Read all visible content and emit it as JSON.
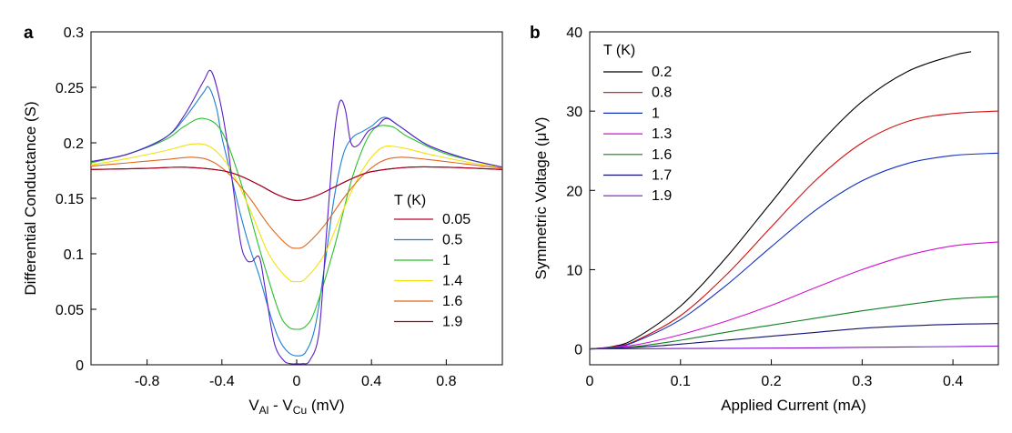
{
  "chart_data": [
    {
      "panel": "a",
      "type": "line",
      "title": "",
      "xlabel": {
        "main": "V",
        "sub1": "Al",
        "mid": " - V",
        "sub2": "Cu",
        "tail": " (mV)"
      },
      "ylabel": "Differential Conductance (S)",
      "xlim": [
        -1.1,
        1.1
      ],
      "ylim": [
        0,
        0.3
      ],
      "xticks": [
        -0.8,
        -0.4,
        0,
        0.4,
        0.8
      ],
      "xtick_labels": [
        "-0.8",
        "-0.4",
        "0",
        "0.4",
        "0.8"
      ],
      "yticks": [
        0,
        0.05,
        0.1,
        0.15,
        0.2,
        0.25,
        0.3
      ],
      "ytick_labels": [
        "0",
        "0.05",
        "0.1",
        "0.15",
        "0.2",
        "0.25",
        "0.3"
      ],
      "legend_title": "T (K)",
      "legend_position": "right",
      "series": [
        {
          "name": "0.05",
          "color": "#c0002a",
          "x": [
            -1.1,
            -0.8,
            -0.6,
            -0.4,
            -0.3,
            -0.2,
            -0.1,
            0,
            0.1,
            0.2,
            0.3,
            0.4,
            0.6,
            0.8,
            1.1
          ],
          "y": [
            0.176,
            0.177,
            0.178,
            0.175,
            0.17,
            0.162,
            0.153,
            0.148,
            0.152,
            0.16,
            0.168,
            0.174,
            0.178,
            0.178,
            0.176
          ]
        },
        {
          "name": "0.5",
          "color": "#1f7fd0",
          "x": [
            -1.1,
            -0.9,
            -0.7,
            -0.6,
            -0.5,
            -0.47,
            -0.43,
            -0.4,
            -0.35,
            -0.3,
            -0.25,
            -0.2,
            -0.15,
            -0.1,
            -0.05,
            0,
            0.05,
            0.1,
            0.15,
            0.2,
            0.25,
            0.3,
            0.35,
            0.4,
            0.47,
            0.55,
            0.7,
            0.9,
            1.1
          ],
          "y": [
            0.183,
            0.19,
            0.205,
            0.222,
            0.245,
            0.25,
            0.232,
            0.205,
            0.17,
            0.135,
            0.105,
            0.08,
            0.05,
            0.025,
            0.012,
            0.008,
            0.012,
            0.035,
            0.09,
            0.15,
            0.19,
            0.205,
            0.21,
            0.215,
            0.223,
            0.215,
            0.198,
            0.186,
            0.178
          ]
        },
        {
          "name": "1",
          "color": "#2bc02b",
          "x": [
            -1.1,
            -0.9,
            -0.7,
            -0.6,
            -0.5,
            -0.4,
            -0.3,
            -0.2,
            -0.1,
            -0.05,
            0,
            0.05,
            0.1,
            0.2,
            0.3,
            0.4,
            0.5,
            0.6,
            0.8,
            1.1
          ],
          "y": [
            0.182,
            0.19,
            0.203,
            0.215,
            0.222,
            0.21,
            0.165,
            0.105,
            0.05,
            0.035,
            0.032,
            0.035,
            0.05,
            0.105,
            0.17,
            0.21,
            0.215,
            0.205,
            0.19,
            0.178
          ]
        },
        {
          "name": "1.4",
          "color": "#f2e20c",
          "x": [
            -1.1,
            -0.9,
            -0.7,
            -0.55,
            -0.45,
            -0.35,
            -0.25,
            -0.15,
            -0.05,
            0,
            0.05,
            0.15,
            0.25,
            0.35,
            0.45,
            0.55,
            0.7,
            0.9,
            1.1
          ],
          "y": [
            0.18,
            0.186,
            0.193,
            0.199,
            0.195,
            0.175,
            0.14,
            0.1,
            0.078,
            0.075,
            0.078,
            0.1,
            0.14,
            0.175,
            0.195,
            0.196,
            0.19,
            0.183,
            0.178
          ]
        },
        {
          "name": "1.6",
          "color": "#e0681c",
          "x": [
            -1.1,
            -0.9,
            -0.7,
            -0.55,
            -0.45,
            -0.35,
            -0.25,
            -0.15,
            -0.05,
            0,
            0.05,
            0.15,
            0.25,
            0.35,
            0.45,
            0.55,
            0.7,
            0.9,
            1.1
          ],
          "y": [
            0.179,
            0.182,
            0.185,
            0.187,
            0.183,
            0.17,
            0.15,
            0.126,
            0.108,
            0.105,
            0.108,
            0.126,
            0.15,
            0.17,
            0.183,
            0.187,
            0.185,
            0.181,
            0.177
          ]
        },
        {
          "name": "1.9",
          "color": "#a0001c",
          "x": [
            -1.1,
            -0.8,
            -0.6,
            -0.4,
            -0.3,
            -0.2,
            -0.1,
            0,
            0.1,
            0.2,
            0.3,
            0.4,
            0.6,
            0.8,
            1.1
          ],
          "y": [
            0.176,
            0.177,
            0.178,
            0.175,
            0.17,
            0.162,
            0.153,
            0.148,
            0.152,
            0.16,
            0.168,
            0.174,
            0.178,
            0.178,
            0.176
          ]
        },
        {
          "name": "",
          "color": "#5a1fc8",
          "x": [
            -1.1,
            -0.9,
            -0.7,
            -0.6,
            -0.5,
            -0.46,
            -0.42,
            -0.38,
            -0.34,
            -0.3,
            -0.27,
            -0.24,
            -0.2,
            -0.17,
            -0.12,
            -0.07,
            -0.03,
            0,
            0.03,
            0.07,
            0.12,
            0.16,
            0.2,
            0.23,
            0.26,
            0.29,
            0.33,
            0.38,
            0.43,
            0.48,
            0.55,
            0.7,
            0.9,
            1.1
          ],
          "y": [
            0.183,
            0.19,
            0.205,
            0.225,
            0.255,
            0.265,
            0.245,
            0.21,
            0.16,
            0.11,
            0.095,
            0.093,
            0.097,
            0.07,
            0.02,
            0.004,
            0.001,
            0.001,
            0.001,
            0.004,
            0.03,
            0.12,
            0.205,
            0.237,
            0.23,
            0.2,
            0.198,
            0.21,
            0.215,
            0.222,
            0.215,
            0.198,
            0.186,
            0.178
          ]
        }
      ]
    },
    {
      "panel": "b",
      "type": "line",
      "title": "",
      "xlabel": "Applied Current (mA)",
      "ylabel": {
        "pre": "Symmetric Voltage (",
        "mu": "μ",
        "post": "V)"
      },
      "xlim": [
        0,
        0.45
      ],
      "ylim": [
        -2,
        40
      ],
      "xticks": [
        0,
        0.1,
        0.2,
        0.3,
        0.4
      ],
      "xtick_labels": [
        "0",
        "0.1",
        "0.2",
        "0.3",
        "0.4"
      ],
      "yticks": [
        0,
        10,
        20,
        30,
        40
      ],
      "ytick_labels": [
        "0",
        "10",
        "20",
        "30",
        "40"
      ],
      "legend_title": "T (K)",
      "legend_position": "top-left",
      "series": [
        {
          "name": "0.2",
          "color": "#000000",
          "x": [
            0,
            0.025,
            0.05,
            0.1,
            0.15,
            0.2,
            0.25,
            0.3,
            0.35,
            0.4,
            0.42
          ],
          "y": [
            0,
            0.3,
            1.3,
            5.4,
            11.5,
            18.5,
            25.5,
            31.2,
            35.0,
            37.0,
            37.5
          ]
        },
        {
          "name": "0.8",
          "color": "#d01010",
          "x": [
            0,
            0.025,
            0.05,
            0.1,
            0.15,
            0.2,
            0.25,
            0.3,
            0.35,
            0.4,
            0.45
          ],
          "y": [
            0,
            0.25,
            1.0,
            4.2,
            9.3,
            15.4,
            21.4,
            26.0,
            28.7,
            29.7,
            30.0
          ]
        },
        {
          "name": "1",
          "color": "#1030c0",
          "x": [
            0,
            0.025,
            0.05,
            0.1,
            0.15,
            0.2,
            0.25,
            0.3,
            0.35,
            0.4,
            0.45
          ],
          "y": [
            0,
            0.2,
            0.9,
            3.7,
            8.0,
            12.9,
            17.6,
            21.2,
            23.4,
            24.4,
            24.7
          ]
        },
        {
          "name": "1.3",
          "color": "#d010d0",
          "x": [
            0,
            0.05,
            0.1,
            0.15,
            0.2,
            0.25,
            0.3,
            0.35,
            0.4,
            0.45
          ],
          "y": [
            0,
            0.5,
            1.8,
            3.5,
            5.5,
            7.8,
            10.0,
            11.8,
            13.0,
            13.5
          ]
        },
        {
          "name": "1.6",
          "color": "#108020",
          "x": [
            0,
            0.05,
            0.1,
            0.15,
            0.2,
            0.25,
            0.3,
            0.35,
            0.4,
            0.45
          ],
          "y": [
            0,
            0.3,
            1.1,
            2.1,
            3.0,
            3.9,
            4.8,
            5.6,
            6.3,
            6.6
          ]
        },
        {
          "name": "1.7",
          "color": "#101070",
          "x": [
            0,
            0.05,
            0.1,
            0.15,
            0.2,
            0.25,
            0.3,
            0.35,
            0.4,
            0.45
          ],
          "y": [
            0,
            0.2,
            0.6,
            1.1,
            1.6,
            2.1,
            2.6,
            2.9,
            3.1,
            3.2
          ]
        },
        {
          "name": "1.9",
          "color": "#8010d0",
          "x": [
            0,
            0.05,
            0.1,
            0.15,
            0.2,
            0.25,
            0.3,
            0.35,
            0.4,
            0.45
          ],
          "y": [
            0,
            0.02,
            0.05,
            0.08,
            0.1,
            0.14,
            0.2,
            0.25,
            0.3,
            0.35
          ]
        }
      ]
    }
  ]
}
